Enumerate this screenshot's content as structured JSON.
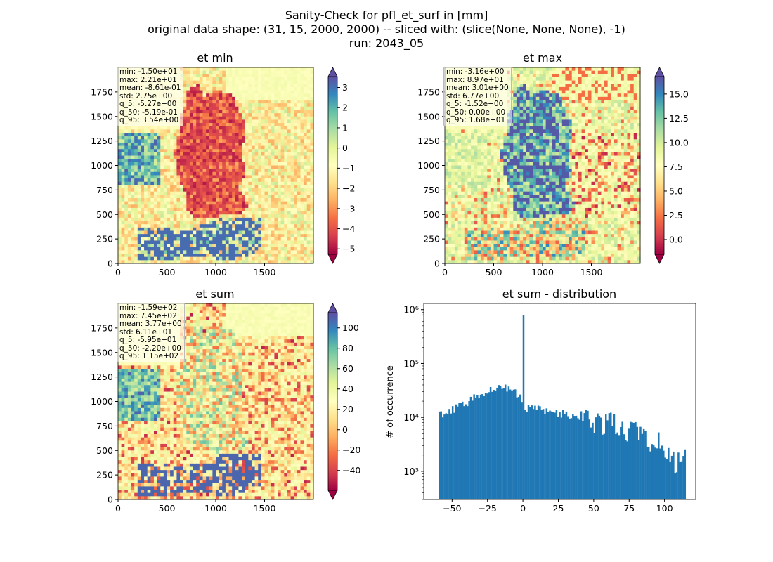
{
  "figure": {
    "title_lines": [
      "Sanity-Check for pfl_et_surf in [mm]",
      "original data shape: (31, 15, 2000, 2000) -- sliced with: (slice(None, None, None), -1)",
      "run: 2043_05"
    ]
  },
  "colors": {
    "bar": "#1f77b4",
    "colormap": "Spectral"
  },
  "chart_data": [
    {
      "type": "heatmap",
      "title": "et min",
      "xlim": [
        0,
        2000
      ],
      "ylim": [
        0,
        2000
      ],
      "xticks": [
        "0",
        "500",
        "1000",
        "1500"
      ],
      "yticks": [
        "0",
        "250",
        "500",
        "750",
        "1000",
        "1250",
        "1500",
        "1750"
      ],
      "colorbar": {
        "range": [
          -5.27,
          3.54
        ],
        "extend": "both",
        "ticks": [
          "−5",
          "−4",
          "−3",
          "−2",
          "−1",
          "0",
          "1",
          "2",
          "3"
        ]
      },
      "stats": [
        "min: -1.50e+01",
        "max: 2.21e+01",
        "mean: -8.61e-01",
        "std: 2.75e+00",
        "q_5: -5.27e+00",
        "q_50: -5.19e-01",
        "q_95: 3.54e+00"
      ]
    },
    {
      "type": "heatmap",
      "title": "et max",
      "xlim": [
        0,
        2000
      ],
      "ylim": [
        0,
        2000
      ],
      "xticks": [
        "0",
        "500",
        "1000",
        "1500"
      ],
      "yticks": [
        "0",
        "250",
        "500",
        "750",
        "1000",
        "1250",
        "1500",
        "1750"
      ],
      "colorbar": {
        "range": [
          -1.52,
          16.8
        ],
        "extend": "both",
        "ticks": [
          "0.0",
          "2.5",
          "5.0",
          "7.5",
          "10.0",
          "12.5",
          "15.0"
        ]
      },
      "stats": [
        "min: -3.16e+00",
        "max: 8.97e+01",
        "mean: 3.01e+00",
        "std: 6.77e+00",
        "q_5: -1.52e+00",
        "q_50: 0.00e+00",
        "q_95: 1.68e+01"
      ]
    },
    {
      "type": "heatmap",
      "title": "et sum",
      "xlim": [
        0,
        2000
      ],
      "ylim": [
        0,
        2000
      ],
      "xticks": [
        "0",
        "500",
        "1000",
        "1500"
      ],
      "yticks": [
        "0",
        "250",
        "500",
        "750",
        "1000",
        "1250",
        "1500",
        "1750"
      ],
      "colorbar": {
        "range": [
          -59.5,
          115
        ],
        "extend": "both",
        "ticks": [
          "−40",
          "−20",
          "0",
          "20",
          "40",
          "60",
          "80",
          "100"
        ]
      },
      "stats": [
        "min: -1.59e+02",
        "max: 7.45e+02",
        "mean: 3.77e+00",
        "std: 6.11e+01",
        "q_5: -5.95e+01",
        "q_50: -2.20e+00",
        "q_95: 1.15e+02"
      ]
    },
    {
      "type": "bar",
      "title": "et sum - distribution",
      "ylabel": "# of occurrence",
      "yscale": "log",
      "xlim": [
        -70,
        122
      ],
      "ylim": [
        300,
        1300000
      ],
      "xticks": [
        "−50",
        "−25",
        "0",
        "25",
        "50",
        "75",
        "100"
      ],
      "yticks": [
        "10³",
        "10⁴",
        "10⁵",
        "10⁶"
      ],
      "bin_range": [
        -59.5,
        115
      ],
      "bin_count": 150,
      "anchors": [
        [
          -59.5,
          11000
        ],
        [
          -50,
          14000
        ],
        [
          -40,
          18000
        ],
        [
          -30,
          27000
        ],
        [
          -20,
          37000
        ],
        [
          -12,
          36000
        ],
        [
          -5,
          30000
        ],
        [
          -0.5,
          20000
        ],
        [
          0,
          800000
        ],
        [
          1,
          15000
        ],
        [
          10,
          14000
        ],
        [
          25,
          12000
        ],
        [
          50,
          8500
        ],
        [
          75,
          6000
        ],
        [
          90,
          4000
        ],
        [
          100,
          2500
        ],
        [
          108,
          1500
        ],
        [
          115,
          1800
        ]
      ]
    }
  ]
}
